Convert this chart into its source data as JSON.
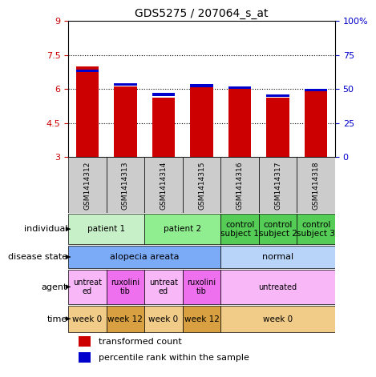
{
  "title": "GDS5275 / 207064_s_at",
  "samples": [
    "GSM1414312",
    "GSM1414313",
    "GSM1414314",
    "GSM1414315",
    "GSM1414316",
    "GSM1414317",
    "GSM1414318"
  ],
  "red_values": [
    7.0,
    6.1,
    5.6,
    6.1,
    6.0,
    5.6,
    5.9
  ],
  "blue_values": [
    6.8,
    6.2,
    5.75,
    6.15,
    6.05,
    5.7,
    5.95
  ],
  "ylim": [
    3,
    9
  ],
  "yticks": [
    3,
    4.5,
    6,
    7.5,
    9
  ],
  "ytick_labels": [
    "3",
    "4.5",
    "6",
    "7.5",
    "9"
  ],
  "y2ticks": [
    0,
    25,
    50,
    75,
    100
  ],
  "y2tick_labels": [
    "0",
    "25",
    "50",
    "75",
    "100%"
  ],
  "hlines": [
    4.5,
    6.0,
    7.5
  ],
  "individual_cells": [
    {
      "cols": [
        0,
        1
      ],
      "label": "patient 1",
      "color": "#c8f0c8"
    },
    {
      "cols": [
        2,
        3
      ],
      "label": "patient 2",
      "color": "#90ee90"
    },
    {
      "cols": [
        4
      ],
      "label": "control\nsubject 1",
      "color": "#55cc55"
    },
    {
      "cols": [
        5
      ],
      "label": "control\nsubject 2",
      "color": "#55cc55"
    },
    {
      "cols": [
        6
      ],
      "label": "control\nsubject 3",
      "color": "#55cc55"
    }
  ],
  "disease_cells": [
    {
      "cols": [
        0,
        1,
        2,
        3
      ],
      "label": "alopecia areata",
      "color": "#7baaf7"
    },
    {
      "cols": [
        4,
        5,
        6
      ],
      "label": "normal",
      "color": "#b8d4f8"
    }
  ],
  "agent_cells": [
    {
      "cols": [
        0
      ],
      "label": "untreat\ned",
      "color": "#f8b8f8"
    },
    {
      "cols": [
        1
      ],
      "label": "ruxolini\ntib",
      "color": "#ee70ee"
    },
    {
      "cols": [
        2
      ],
      "label": "untreat\ned",
      "color": "#f8b8f8"
    },
    {
      "cols": [
        3
      ],
      "label": "ruxolini\ntib",
      "color": "#ee70ee"
    },
    {
      "cols": [
        4,
        5,
        6
      ],
      "label": "untreated",
      "color": "#f8b8f8"
    }
  ],
  "time_cells": [
    {
      "cols": [
        0
      ],
      "label": "week 0",
      "color": "#f0cc88"
    },
    {
      "cols": [
        1
      ],
      "label": "week 12",
      "color": "#d8a040"
    },
    {
      "cols": [
        2
      ],
      "label": "week 0",
      "color": "#f0cc88"
    },
    {
      "cols": [
        3
      ],
      "label": "week 12",
      "color": "#d8a040"
    },
    {
      "cols": [
        4,
        5,
        6
      ],
      "label": "week 0",
      "color": "#f0cc88"
    }
  ],
  "bar_color_red": "#cc0000",
  "bar_color_blue": "#0000cc",
  "tick_color_red": "#cc0000",
  "tick_color_blue": "#0000cc",
  "sample_bg": "#cccccc"
}
